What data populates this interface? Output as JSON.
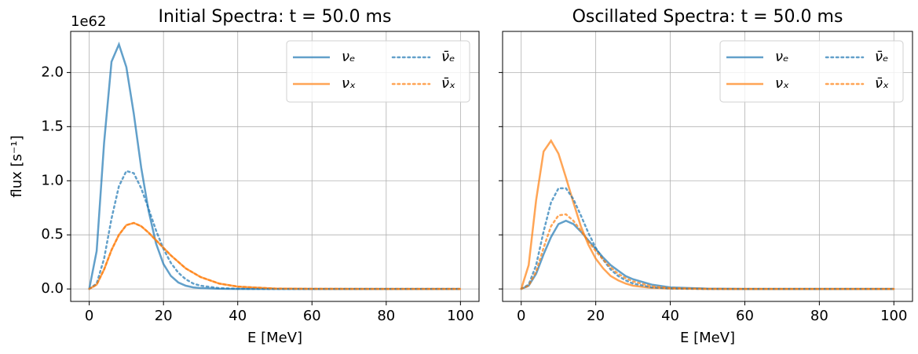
{
  "chart_data": [
    {
      "type": "line",
      "title": "Initial Spectra: t = 50.0 ms",
      "xlabel": "E [MeV]",
      "ylabel": "flux [s⁻¹]",
      "offset_text": "1e62",
      "x": [
        0,
        2,
        4,
        6,
        8,
        10,
        12,
        14,
        16,
        18,
        20,
        22,
        24,
        26,
        28,
        30,
        35,
        40,
        50,
        60,
        80,
        100
      ],
      "series": [
        {
          "name": "νₑ",
          "color": "#1f77b4",
          "alpha": 0.7,
          "linestyle": "solid",
          "values": [
            0,
            0.35,
            1.35,
            2.1,
            2.26,
            2.05,
            1.62,
            1.12,
            0.72,
            0.42,
            0.23,
            0.12,
            0.06,
            0.03,
            0.015,
            0.008,
            0.002,
            0,
            0,
            0,
            0,
            0
          ]
        },
        {
          "name": "νₓ",
          "color": "#ff7f0e",
          "alpha": 0.7,
          "linestyle": "solid",
          "values": [
            0,
            0.04,
            0.18,
            0.36,
            0.5,
            0.59,
            0.61,
            0.58,
            0.52,
            0.45,
            0.38,
            0.31,
            0.25,
            0.19,
            0.15,
            0.11,
            0.05,
            0.022,
            0.004,
            0.001,
            0,
            0
          ]
        },
        {
          "name": "ν̄ₑ",
          "color": "#1f77b4",
          "alpha": 0.7,
          "linestyle": "dotted",
          "values": [
            0,
            0.05,
            0.28,
            0.65,
            0.95,
            1.09,
            1.07,
            0.93,
            0.74,
            0.54,
            0.37,
            0.24,
            0.15,
            0.09,
            0.05,
            0.03,
            0.008,
            0.002,
            0,
            0,
            0,
            0
          ]
        },
        {
          "name": "ν̄ₓ",
          "color": "#ff7f0e",
          "alpha": 0.7,
          "linestyle": "dotted",
          "values": [
            0,
            0.04,
            0.18,
            0.36,
            0.5,
            0.59,
            0.61,
            0.58,
            0.52,
            0.45,
            0.38,
            0.31,
            0.25,
            0.19,
            0.15,
            0.11,
            0.05,
            0.022,
            0.004,
            0.001,
            0,
            0
          ]
        }
      ],
      "xlim": [
        -5,
        105
      ],
      "xticks": [
        0,
        20,
        40,
        60,
        80,
        100
      ],
      "ylim": [
        -0.115,
        2.38
      ],
      "yticks": [
        {
          "value": 0,
          "label": "0.0"
        },
        0.5,
        {
          "value": 1,
          "label": "1.0"
        },
        1.5,
        {
          "value": 2,
          "label": "2.0"
        }
      ],
      "grid": true,
      "legend": "upper right",
      "legend_columns": 2
    },
    {
      "type": "line",
      "title": "Oscillated Spectra: t = 50.0 ms",
      "xlabel": "E [MeV]",
      "x": [
        0,
        2,
        4,
        6,
        8,
        10,
        12,
        14,
        16,
        18,
        20,
        22,
        24,
        26,
        28,
        30,
        35,
        40,
        50,
        60,
        80,
        100
      ],
      "series": [
        {
          "name": "νₑ",
          "color": "#1f77b4",
          "alpha": 0.7,
          "linestyle": "solid",
          "values": [
            0,
            0.03,
            0.14,
            0.32,
            0.48,
            0.6,
            0.63,
            0.6,
            0.53,
            0.45,
            0.37,
            0.29,
            0.22,
            0.17,
            0.12,
            0.09,
            0.04,
            0.015,
            0.003,
            0,
            0,
            0
          ]
        },
        {
          "name": "νₓ",
          "color": "#ff7f0e",
          "alpha": 0.7,
          "linestyle": "solid",
          "values": [
            0,
            0.22,
            0.82,
            1.27,
            1.37,
            1.25,
            1.03,
            0.8,
            0.58,
            0.41,
            0.28,
            0.19,
            0.12,
            0.08,
            0.05,
            0.03,
            0.01,
            0.003,
            0,
            0,
            0,
            0
          ]
        },
        {
          "name": "ν̄ₑ",
          "color": "#1f77b4",
          "alpha": 0.7,
          "linestyle": "dotted",
          "values": [
            0,
            0.04,
            0.22,
            0.53,
            0.8,
            0.93,
            0.93,
            0.83,
            0.68,
            0.52,
            0.38,
            0.27,
            0.18,
            0.12,
            0.08,
            0.05,
            0.015,
            0.004,
            0,
            0,
            0,
            0
          ]
        },
        {
          "name": "ν̄ₓ",
          "color": "#ff7f0e",
          "alpha": 0.7,
          "linestyle": "dotted",
          "values": [
            0,
            0.03,
            0.16,
            0.38,
            0.58,
            0.68,
            0.69,
            0.63,
            0.54,
            0.44,
            0.35,
            0.27,
            0.2,
            0.14,
            0.1,
            0.07,
            0.025,
            0.008,
            0.001,
            0,
            0,
            0
          ]
        }
      ],
      "xlim": [
        -5,
        105
      ],
      "xticks": [
        0,
        20,
        40,
        60,
        80,
        100
      ],
      "ylim": [
        -0.115,
        2.38
      ],
      "yticks": [
        0,
        0.5,
        1,
        1.5,
        2
      ],
      "grid": true,
      "legend": "upper right",
      "legend_columns": 2
    }
  ]
}
